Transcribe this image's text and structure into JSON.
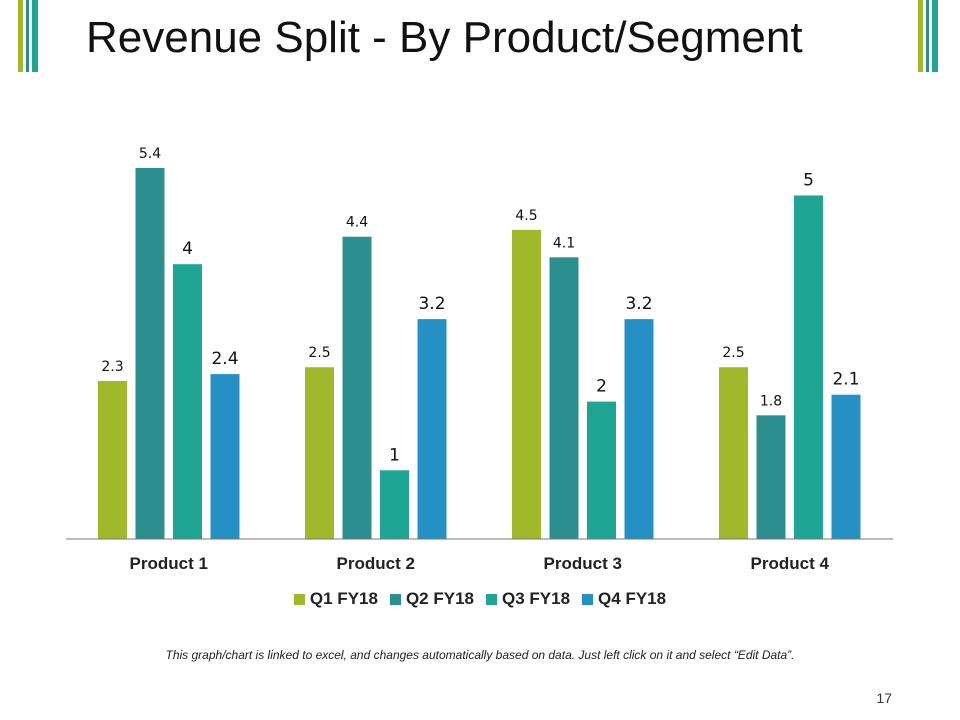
{
  "slide": {
    "title": "Revenue Split - By Product/Segment",
    "footnote": "This graph/chart is linked to excel, and changes automatically based on data. Just left click on it and select “Edit Data”.",
    "page_number": "17",
    "accent_colors": [
      "#a0b82a",
      "#2c8f8f",
      "#1fa594"
    ]
  },
  "chart_data": {
    "type": "bar",
    "title": "",
    "xlabel": "",
    "ylabel": "",
    "ylim": [
      0,
      6
    ],
    "grid": false,
    "legend": "bottom",
    "categories": [
      "Product 1",
      "Product 2",
      "Product 3",
      "Product 4"
    ],
    "series": [
      {
        "name": "Q1 FY18",
        "color": "#a0b82a",
        "values": [
          2.3,
          2.5,
          4.5,
          2.5
        ],
        "labels": [
          "2.3",
          "2.5",
          "4.5",
          "2.5"
        ]
      },
      {
        "name": "Q2 FY18",
        "color": "#2c8f8f",
        "values": [
          5.4,
          4.4,
          4.1,
          1.8
        ],
        "labels": [
          "5.4",
          "4.4",
          "4.1",
          "1.8"
        ]
      },
      {
        "name": "Q3 FY18",
        "color": "#1fa594",
        "values": [
          4,
          1,
          2,
          5
        ],
        "labels": [
          "4",
          "1",
          "2",
          "5"
        ]
      },
      {
        "name": "Q4 FY18",
        "color": "#2590c4",
        "values": [
          2.4,
          3.2,
          3.2,
          2.1
        ],
        "labels": [
          "2.4",
          "3.2",
          "3.2",
          "2.1"
        ]
      }
    ]
  }
}
